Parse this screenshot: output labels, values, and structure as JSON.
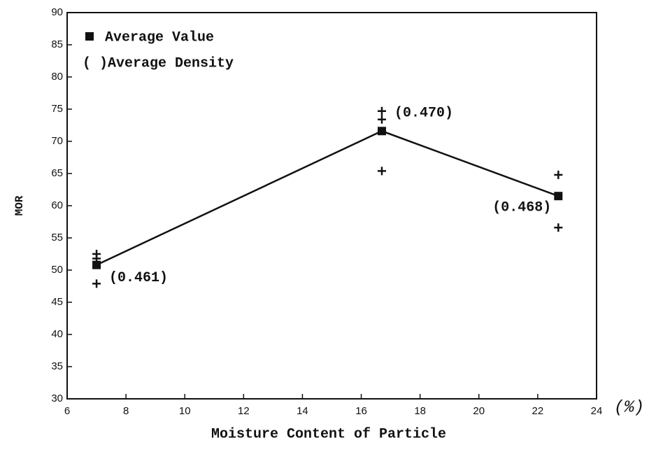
{
  "chart_data": {
    "type": "line",
    "xlabel": "Moisture Content of Particle",
    "ylabel": "MOR",
    "x_unit": "(%)",
    "xlim": [
      6,
      24
    ],
    "ylim": [
      30,
      90
    ],
    "xticks": [
      6,
      8,
      10,
      12,
      14,
      16,
      18,
      20,
      22,
      24
    ],
    "yticks": [
      30,
      35,
      40,
      45,
      50,
      55,
      60,
      65,
      70,
      75,
      80,
      85,
      90
    ],
    "series": [
      {
        "name": "Average Value",
        "color": "#111111",
        "x": [
          7,
          16.7,
          22.7
        ],
        "values": [
          50.8,
          71.6,
          61.5
        ]
      }
    ],
    "points": {
      "color": "#111111",
      "x": [
        7,
        7,
        7,
        16.7,
        16.7,
        16.7,
        22.7,
        22.7
      ],
      "values": [
        52.5,
        51.8,
        47.9,
        74.7,
        73.4,
        65.4,
        64.8,
        56.6
      ]
    },
    "annotations": [
      "(0.461)",
      "(0.470)",
      "(0.468)"
    ],
    "density_note": "( )Average Density"
  }
}
